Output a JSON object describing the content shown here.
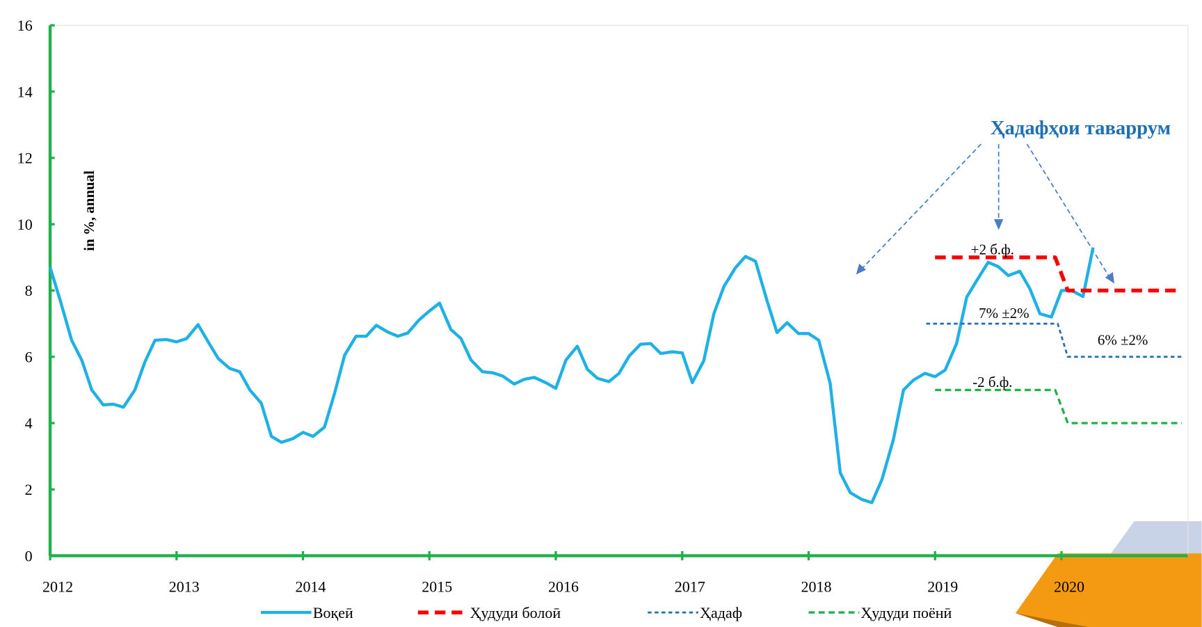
{
  "chart_data": {
    "type": "line",
    "y_axis_label": "in %, annual",
    "annotations": [
      "Ҳадафҳои таваррум",
      "+2 б.ф.",
      "7% ±2%",
      "6% ±2%",
      "-2 б.ф."
    ],
    "xlim": [
      2012,
      2021
    ],
    "xticks": [
      2012,
      2013,
      2014,
      2015,
      2016,
      2017,
      2018,
      2019,
      2020
    ],
    "ylim": [
      0,
      16
    ],
    "yticks": [
      0,
      2,
      4,
      6,
      8,
      10,
      12,
      14,
      16
    ],
    "series": [
      {
        "name": "Воқеӣ",
        "color": "#1fb1e6",
        "dash": "solid",
        "x": [
          2012.0,
          2012.08,
          2012.17,
          2012.25,
          2012.33,
          2012.42,
          2012.5,
          2012.58,
          2012.67,
          2012.75,
          2012.83,
          2012.92,
          2013.0,
          2013.08,
          2013.17,
          2013.25,
          2013.33,
          2013.42,
          2013.5,
          2013.58,
          2013.67,
          2013.75,
          2013.83,
          2013.92,
          2014.0,
          2014.08,
          2014.17,
          2014.25,
          2014.33,
          2014.42,
          2014.5,
          2014.58,
          2014.67,
          2014.75,
          2014.83,
          2014.92,
          2015.0,
          2015.08,
          2015.17,
          2015.25,
          2015.33,
          2015.42,
          2015.5,
          2015.58,
          2015.67,
          2015.75,
          2015.83,
          2015.92,
          2016.0,
          2016.08,
          2016.17,
          2016.25,
          2016.33,
          2016.42,
          2016.5,
          2016.58,
          2016.67,
          2016.75,
          2016.83,
          2016.92,
          2017.0,
          2017.08,
          2017.17,
          2017.25,
          2017.33,
          2017.42,
          2017.5,
          2017.58,
          2017.67,
          2017.75,
          2017.83,
          2017.92,
          2018.0,
          2018.08,
          2018.17,
          2018.25,
          2018.33,
          2018.42,
          2018.5,
          2018.58,
          2018.67,
          2018.75,
          2018.83,
          2018.92,
          2019.0,
          2019.08,
          2019.17,
          2019.25,
          2019.33,
          2019.42,
          2019.5,
          2019.58,
          2019.67,
          2019.75,
          2019.83,
          2019.92,
          2020.0,
          2020.08,
          2020.17,
          2020.25
        ],
        "values": [
          8.7,
          7.7,
          6.5,
          5.9,
          5.0,
          4.55,
          4.57,
          4.48,
          5.0,
          5.85,
          6.5,
          6.52,
          6.45,
          6.55,
          6.97,
          6.45,
          5.95,
          5.65,
          5.55,
          5.0,
          4.6,
          3.6,
          3.42,
          3.53,
          3.72,
          3.6,
          3.88,
          4.9,
          6.05,
          6.62,
          6.62,
          6.95,
          6.75,
          6.62,
          6.72,
          7.12,
          7.38,
          7.62,
          6.82,
          6.55,
          5.9,
          5.55,
          5.52,
          5.42,
          5.18,
          5.32,
          5.38,
          5.22,
          5.05,
          5.9,
          6.32,
          5.62,
          5.35,
          5.25,
          5.5,
          6.02,
          6.38,
          6.4,
          6.1,
          6.15,
          6.12,
          5.22,
          5.88,
          7.3,
          8.12,
          8.68,
          9.03,
          8.88,
          7.7,
          6.73,
          7.03,
          6.7,
          6.7,
          6.5,
          5.2,
          2.5,
          1.9,
          1.7,
          1.6,
          2.3,
          3.5,
          5.0,
          5.3,
          5.5,
          5.4,
          5.6,
          6.4,
          7.8,
          8.3,
          8.85,
          8.72,
          8.45,
          8.58,
          8.05,
          7.3,
          7.2,
          8.0,
          8.0,
          7.82,
          9.3
        ]
      },
      {
        "name": "Ҳудуди болоӣ",
        "color": "#ff0000",
        "dash": "long",
        "x": [
          2019.0,
          2019.95,
          2020.05,
          2020.95
        ],
        "values": [
          9,
          9,
          8,
          8
        ]
      },
      {
        "name": "Ҳадаф",
        "color": "#1f6fb5",
        "dash": "short",
        "x": [
          2018.93,
          2019.97,
          2020.05,
          2020.95
        ],
        "values": [
          7,
          7,
          6,
          6
        ]
      },
      {
        "name": "Ҳудуди поёнӣ",
        "color": "#1fb14a",
        "dash": "medium",
        "x": [
          2019.0,
          2019.95,
          2020.05,
          2020.95
        ],
        "values": [
          5,
          5,
          4,
          4
        ]
      }
    ]
  }
}
